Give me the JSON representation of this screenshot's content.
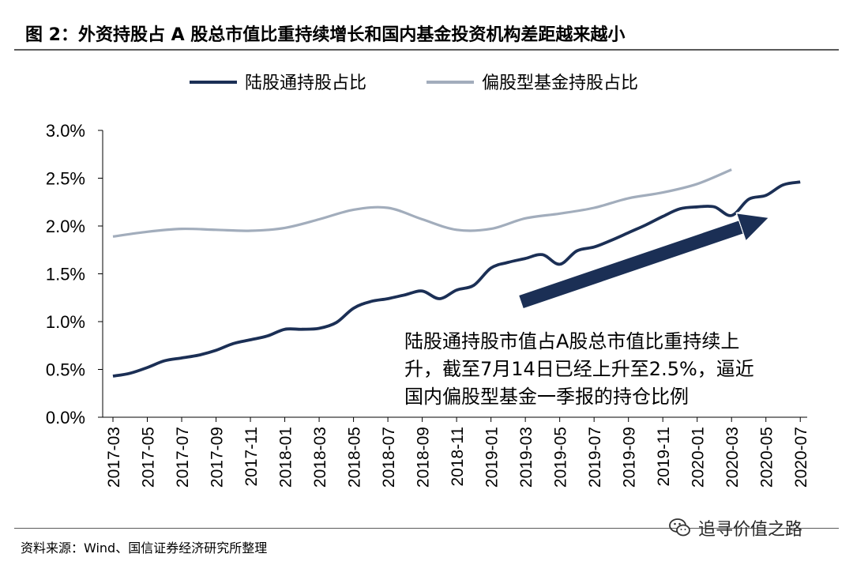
{
  "title": "图 2：外资持股占 A 股总市值比重持续增长和国内基金投资机构差距越来越小",
  "source": "资料来源：Wind、国信证券经济研究所整理",
  "watermark": "追寻价值之路",
  "colors": {
    "series1": "#1b2f55",
    "series2": "#a2adbc",
    "arrow": "#1b2f55"
  },
  "chart_data": {
    "type": "line",
    "ylim": [
      0.0,
      3.0
    ],
    "yticks": [
      "0.0%",
      "0.5%",
      "1.0%",
      "1.5%",
      "2.0%",
      "2.5%",
      "3.0%"
    ],
    "ytick_values": [
      0.0,
      0.5,
      1.0,
      1.5,
      2.0,
      2.5,
      3.0
    ],
    "xticks": [
      "2017-03",
      "2017-05",
      "2017-07",
      "2017-09",
      "2017-11",
      "2018-01",
      "2018-03",
      "2018-05",
      "2018-07",
      "2018-09",
      "2018-11",
      "2019-01",
      "2019-03",
      "2019-05",
      "2019-07",
      "2019-09",
      "2019-11",
      "2020-01",
      "2020-03",
      "2020-05",
      "2020-07"
    ],
    "legend_placement": "top",
    "grid": false,
    "series": [
      {
        "name": "陆股通持股占比",
        "points": [
          [
            "2017-03",
            0.43
          ],
          [
            "2017-04",
            0.46
          ],
          [
            "2017-05",
            0.52
          ],
          [
            "2017-06",
            0.59
          ],
          [
            "2017-07",
            0.62
          ],
          [
            "2017-08",
            0.65
          ],
          [
            "2017-09",
            0.7
          ],
          [
            "2017-10",
            0.77
          ],
          [
            "2017-11",
            0.81
          ],
          [
            "2017-12",
            0.85
          ],
          [
            "2018-01",
            0.92
          ],
          [
            "2018-02",
            0.92
          ],
          [
            "2018-03",
            0.93
          ],
          [
            "2018-04",
            0.99
          ],
          [
            "2018-05",
            1.14
          ],
          [
            "2018-06",
            1.21
          ],
          [
            "2018-07",
            1.24
          ],
          [
            "2018-08",
            1.28
          ],
          [
            "2018-09",
            1.32
          ],
          [
            "2018-10",
            1.24
          ],
          [
            "2018-11",
            1.33
          ],
          [
            "2018-12",
            1.38
          ],
          [
            "2019-01",
            1.56
          ],
          [
            "2019-02",
            1.62
          ],
          [
            "2019-03",
            1.66
          ],
          [
            "2019-04",
            1.7
          ],
          [
            "2019-05",
            1.6
          ],
          [
            "2019-06",
            1.74
          ],
          [
            "2019-07",
            1.78
          ],
          [
            "2019-08",
            1.85
          ],
          [
            "2019-09",
            1.93
          ],
          [
            "2019-10",
            2.01
          ],
          [
            "2019-11",
            2.1
          ],
          [
            "2019-12",
            2.18
          ],
          [
            "2020-01",
            2.2
          ],
          [
            "2020-02",
            2.2
          ],
          [
            "2020-03",
            2.11
          ],
          [
            "2020-04",
            2.28
          ],
          [
            "2020-05",
            2.32
          ],
          [
            "2020-06",
            2.43
          ],
          [
            "2020-07",
            2.46
          ]
        ]
      },
      {
        "name": "偏股型基金持股占比",
        "points": [
          [
            "2017-03",
            1.89
          ],
          [
            "2017-05",
            1.94
          ],
          [
            "2017-07",
            1.97
          ],
          [
            "2017-09",
            1.96
          ],
          [
            "2017-11",
            1.95
          ],
          [
            "2018-01",
            1.98
          ],
          [
            "2018-03",
            2.07
          ],
          [
            "2018-05",
            2.17
          ],
          [
            "2018-07",
            2.19
          ],
          [
            "2018-09",
            2.07
          ],
          [
            "2018-11",
            1.96
          ],
          [
            "2019-01",
            1.97
          ],
          [
            "2019-03",
            2.08
          ],
          [
            "2019-05",
            2.13
          ],
          [
            "2019-07",
            2.19
          ],
          [
            "2019-09",
            2.29
          ],
          [
            "2019-11",
            2.35
          ],
          [
            "2020-01",
            2.44
          ],
          [
            "2020-03",
            2.59
          ]
        ]
      }
    ],
    "annotation": {
      "lines": [
        "陆股通持股市值占A股总市值比重持续上",
        "升，截至7月14日已经上升至2.5%，逼近",
        "国内偏股型基金一季报的持仓比例"
      ]
    }
  }
}
